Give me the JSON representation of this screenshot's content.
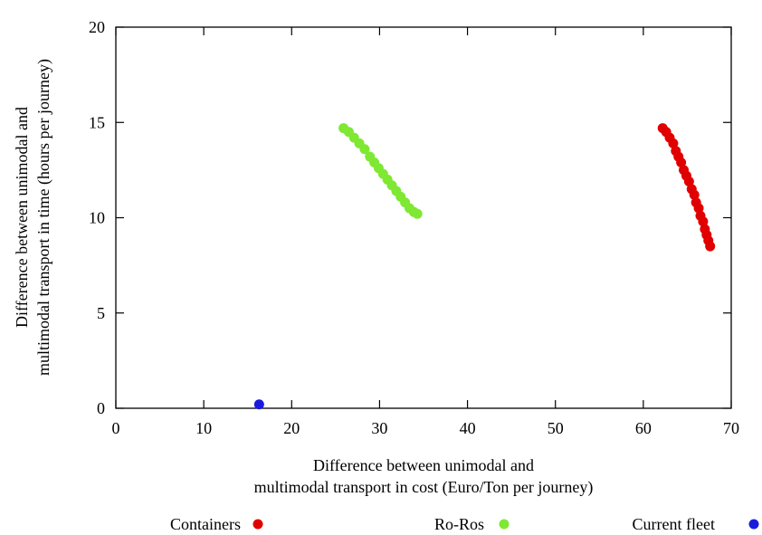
{
  "chart_data": {
    "type": "scatter",
    "xlim": [
      0,
      70
    ],
    "ylim": [
      0,
      20
    ],
    "xticks": [
      0,
      10,
      20,
      30,
      40,
      50,
      60,
      70
    ],
    "yticks": [
      0,
      5,
      10,
      15,
      20
    ],
    "xlabel_lines": [
      "Difference between unimodal and",
      "multimodal transport in cost (Euro/Ton per journey)"
    ],
    "ylabel_lines": [
      "Difference between unimodal and",
      "multimodal transport in time (hours per journey)"
    ],
    "grid": false,
    "legend_position": "bottom",
    "series": [
      {
        "name": "Containers",
        "color": "#e00000",
        "points": [
          [
            62.2,
            14.7
          ],
          [
            62.6,
            14.5
          ],
          [
            63.0,
            14.2
          ],
          [
            63.4,
            13.9
          ],
          [
            63.7,
            13.5
          ],
          [
            64.0,
            13.2
          ],
          [
            64.3,
            12.9
          ],
          [
            64.6,
            12.5
          ],
          [
            64.9,
            12.2
          ],
          [
            65.2,
            11.9
          ],
          [
            65.5,
            11.5
          ],
          [
            65.8,
            11.2
          ],
          [
            66.0,
            10.8
          ],
          [
            66.3,
            10.5
          ],
          [
            66.5,
            10.1
          ],
          [
            66.8,
            9.8
          ],
          [
            67.0,
            9.4
          ],
          [
            67.2,
            9.1
          ],
          [
            67.4,
            8.8
          ],
          [
            67.6,
            8.5
          ]
        ]
      },
      {
        "name": "Ro-Ros",
        "color": "#7ee832",
        "points": [
          [
            25.9,
            14.7
          ],
          [
            26.5,
            14.5
          ],
          [
            27.1,
            14.2
          ],
          [
            27.7,
            13.9
          ],
          [
            28.3,
            13.6
          ],
          [
            28.9,
            13.2
          ],
          [
            29.4,
            12.9
          ],
          [
            29.9,
            12.6
          ],
          [
            30.4,
            12.3
          ],
          [
            30.9,
            12.0
          ],
          [
            31.4,
            11.7
          ],
          [
            31.9,
            11.4
          ],
          [
            32.4,
            11.1
          ],
          [
            32.9,
            10.8
          ],
          [
            33.4,
            10.5
          ],
          [
            33.9,
            10.3
          ],
          [
            34.3,
            10.2
          ]
        ]
      },
      {
        "name": "Current fleet",
        "color": "#1a1adf",
        "points": [
          [
            16.3,
            0.2
          ]
        ]
      }
    ]
  }
}
